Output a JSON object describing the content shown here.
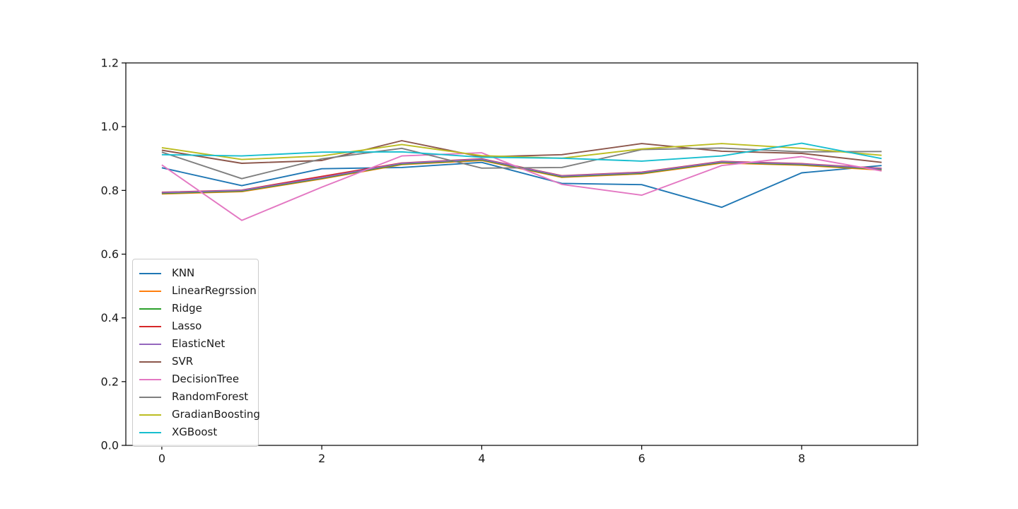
{
  "figure": {
    "background_color": "#ffffff",
    "spine_color": "#000000",
    "tick_label_color": "#1a1a1a",
    "legend_border_color": "#cccccc"
  },
  "chart_data": {
    "type": "line",
    "title": "",
    "xlabel": "",
    "ylabel": "",
    "grid": false,
    "legend_position": "lower-left",
    "x": [
      0,
      1,
      2,
      3,
      4,
      5,
      6,
      7,
      8,
      9
    ],
    "xlim": [
      -0.45,
      9.45
    ],
    "ylim": [
      0.0,
      1.2
    ],
    "xticks": [
      0,
      2,
      4,
      6,
      8
    ],
    "yticks": [
      0.0,
      0.2,
      0.4,
      0.6,
      0.8,
      1.0,
      1.2
    ],
    "series": [
      {
        "name": "KNN",
        "color": "#1f77b4",
        "values": [
          0.871,
          0.815,
          0.868,
          0.872,
          0.888,
          0.822,
          0.818,
          0.747,
          0.855,
          0.878
        ]
      },
      {
        "name": "LinearRegrssion",
        "color": "#ff7f0e",
        "values": [
          0.789,
          0.796,
          0.836,
          0.881,
          0.894,
          0.841,
          0.852,
          0.886,
          0.879,
          0.864
        ]
      },
      {
        "name": "Ridge",
        "color": "#2ca02c",
        "values": [
          0.791,
          0.798,
          0.838,
          0.883,
          0.896,
          0.843,
          0.854,
          0.888,
          0.881,
          0.866
        ]
      },
      {
        "name": "Lasso",
        "color": "#d62728",
        "values": [
          0.794,
          0.801,
          0.844,
          0.886,
          0.899,
          0.846,
          0.857,
          0.891,
          0.884,
          0.869
        ]
      },
      {
        "name": "ElasticNet",
        "color": "#9467bd",
        "values": [
          0.793,
          0.8,
          0.84,
          0.885,
          0.898,
          0.845,
          0.856,
          0.89,
          0.883,
          0.868
        ]
      },
      {
        "name": "SVR",
        "color": "#8c564b",
        "values": [
          0.926,
          0.885,
          0.894,
          0.956,
          0.905,
          0.912,
          0.947,
          0.923,
          0.916,
          0.888
        ]
      },
      {
        "name": "DecisionTree",
        "color": "#e377c2",
        "values": [
          0.88,
          0.706,
          0.81,
          0.908,
          0.918,
          0.819,
          0.785,
          0.878,
          0.906,
          0.861
        ]
      },
      {
        "name": "RandomForest",
        "color": "#7f7f7f",
        "values": [
          0.92,
          0.837,
          0.899,
          0.932,
          0.87,
          0.872,
          0.928,
          0.933,
          0.921,
          0.922
        ]
      },
      {
        "name": "GradianBoosting",
        "color": "#bcbd22",
        "values": [
          0.934,
          0.897,
          0.908,
          0.944,
          0.909,
          0.901,
          0.93,
          0.947,
          0.932,
          0.91
        ]
      },
      {
        "name": "XGBoost",
        "color": "#17becf",
        "values": [
          0.912,
          0.908,
          0.92,
          0.921,
          0.904,
          0.901,
          0.892,
          0.908,
          0.948,
          0.9
        ]
      }
    ]
  }
}
